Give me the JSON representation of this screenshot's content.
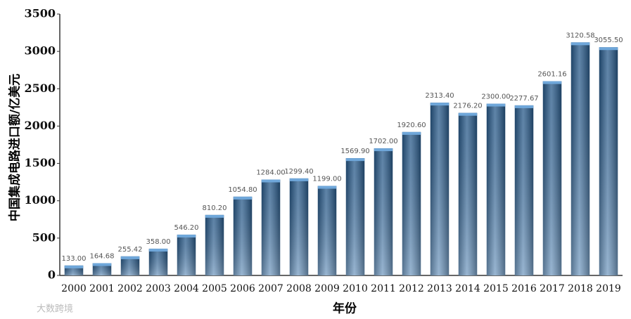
{
  "chart_data": {
    "type": "bar",
    "ylabel": "中国集成电路进口额/亿美元",
    "xlabel": "年份",
    "watermark": "大数跨境",
    "categories": [
      "2000",
      "2001",
      "2002",
      "2003",
      "2004",
      "2005",
      "2006",
      "2007",
      "2008",
      "2009",
      "2010",
      "2011",
      "2012",
      "2013",
      "2014",
      "2015",
      "2016",
      "2017",
      "2018",
      "2019"
    ],
    "values": [
      133.0,
      164.68,
      255.42,
      358.0,
      546.2,
      810.2,
      1054.8,
      1284.0,
      1299.4,
      1199.0,
      1569.9,
      1702.0,
      1920.6,
      2313.4,
      2176.2,
      2300.0,
      2277.67,
      2601.16,
      3120.58,
      3055.5
    ],
    "value_labels": [
      "133.00",
      "164.68",
      "255.42",
      "358.00",
      "546.20",
      "810.20",
      "1054.80",
      "1284.00",
      "1299.40",
      "1199.00",
      "1569.90",
      "1702.00",
      "1920.60",
      "2313.40",
      "2176.20",
      "2300.00",
      "2277.67",
      "2601.16",
      "3120.58",
      "3055.50"
    ],
    "color": "#2f6aa3",
    "ylim": [
      0,
      3500
    ],
    "yticks": [
      0,
      500,
      1000,
      1500,
      2000,
      2500,
      3000,
      3500
    ],
    "grid": false
  }
}
